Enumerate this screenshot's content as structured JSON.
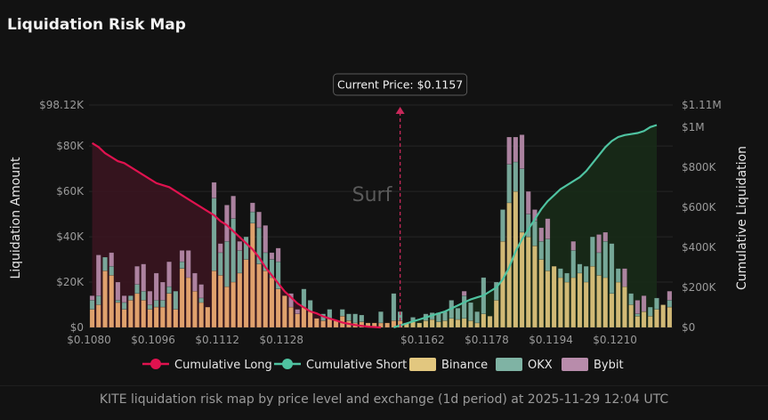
{
  "title": "Liquidation Risk Map",
  "caption": "KITE liquidation risk map by price level and exchange (1d period) at 2025-11-29 12:04 UTC",
  "watermark": "Surf",
  "colors": {
    "background": "#121212",
    "binance": "#e2c77f",
    "binance_long": "#efae74",
    "okx": "#7fb3a4",
    "bybit": "#b88cab",
    "long": "#e0124f",
    "long_fill": "#3a1520",
    "short": "#4fc3a1",
    "short_fill": "#182a18",
    "current_price": "#c8285a"
  },
  "chart_data": {
    "type": "bar",
    "stacked": true,
    "title": "Liquidation Risk Map",
    "xlabel": "",
    "ylabel": "Liquidation Amount",
    "y2label": "Cumulative Liquidation",
    "ylim": [
      0,
      98120
    ],
    "y2lim": [
      0,
      1110000
    ],
    "y_ticks": [
      "$0",
      "$20K",
      "$40K",
      "$60K",
      "$80K",
      "$98.12K"
    ],
    "y2_ticks": [
      "$0",
      "$200K",
      "$400K",
      "$600K",
      "$800K",
      "$1M",
      "$1.11M"
    ],
    "x_ticks": [
      "$0.1080",
      "$0.1096",
      "$0.1112",
      "$0.1128",
      "$0.1162",
      "$0.1178",
      "$0.1194",
      "$0.1210"
    ],
    "current_price_label": "Current Price: $0.1157",
    "current_price_index": 48.5,
    "legend": [
      "Cumulative Long",
      "Cumulative Short",
      "Binance",
      "OKX",
      "Bybit"
    ],
    "series": [
      {
        "name": "Binance",
        "values": [
          8000,
          10000,
          25000,
          23000,
          11000,
          8000,
          12000,
          15000,
          12000,
          8000,
          9000,
          9000,
          15000,
          8000,
          26000,
          22000,
          16000,
          11000,
          9000,
          25000,
          23000,
          18000,
          20000,
          24000,
          30000,
          46000,
          28000,
          25000,
          22000,
          17000,
          14000,
          9000,
          6000,
          9000,
          7000,
          4000,
          3000,
          4000,
          3000,
          5000,
          3000,
          2000,
          2500,
          2000,
          2000,
          2000,
          2000,
          3000,
          3000,
          2000,
          2500,
          2000,
          3000,
          3500,
          2500,
          3000,
          4000,
          3500,
          4000,
          3000,
          2000,
          6000,
          5000,
          12000,
          38000,
          55000,
          60000,
          42000,
          40000,
          36000,
          30000,
          25000,
          27000,
          22000,
          20000,
          22000,
          24000,
          20000,
          27000,
          23000,
          22000,
          15000,
          20000,
          18000,
          10000,
          5000,
          7000,
          5000,
          8000,
          10000,
          9000
        ]
      },
      {
        "name": "OKX",
        "values": [
          4000,
          4000,
          6000,
          4000,
          1000,
          3000,
          2000,
          4000,
          4000,
          2000,
          3000,
          3000,
          3000,
          8000,
          3000,
          0,
          0,
          2000,
          0,
          32000,
          10000,
          20000,
          28000,
          10000,
          10000,
          5000,
          16000,
          8000,
          8000,
          12000,
          0,
          0,
          0,
          8000,
          5000,
          0,
          3000,
          4000,
          0,
          3000,
          3000,
          4000,
          3000,
          0,
          0,
          5000,
          0,
          12000,
          4000,
          0,
          2000,
          0,
          3000,
          3000,
          4000,
          4000,
          8000,
          5000,
          10000,
          8000,
          5000,
          16000,
          0,
          8000,
          14000,
          17000,
          13000,
          28000,
          10000,
          11000,
          8000,
          14000,
          0,
          4000,
          4000,
          12000,
          4000,
          7000,
          13000,
          10000,
          16000,
          22000,
          6000,
          0,
          5000,
          1000,
          0,
          4000,
          5000,
          0,
          3000
        ]
      },
      {
        "name": "Bybit",
        "values": [
          2000,
          18000,
          0,
          6000,
          8000,
          3000,
          0,
          8000,
          12000,
          6000,
          12000,
          8000,
          11000,
          0,
          5000,
          12000,
          8000,
          6000,
          0,
          7000,
          4000,
          16000,
          10000,
          4000,
          0,
          4000,
          7000,
          12000,
          3000,
          6000,
          0,
          6000,
          2000,
          0,
          0,
          0,
          0,
          0,
          0,
          0,
          0,
          0,
          0,
          0,
          0,
          0,
          0,
          0,
          0,
          0,
          0,
          0,
          0,
          0,
          0,
          0,
          0,
          0,
          2000,
          0,
          0,
          0,
          0,
          0,
          0,
          12000,
          11000,
          15000,
          10000,
          5000,
          6000,
          9000,
          0,
          0,
          0,
          4000,
          0,
          0,
          0,
          8000,
          4000,
          0,
          0,
          8000,
          0,
          6000,
          7000,
          0,
          0,
          0,
          4000
        ]
      },
      {
        "name": "Cumulative Long",
        "axis": "y2",
        "values": [
          920000,
          900000,
          870000,
          850000,
          830000,
          820000,
          800000,
          780000,
          760000,
          740000,
          720000,
          710000,
          700000,
          680000,
          660000,
          640000,
          620000,
          600000,
          580000,
          560000,
          530000,
          510000,
          480000,
          450000,
          420000,
          390000,
          350000,
          300000,
          260000,
          220000,
          180000,
          150000,
          120000,
          100000,
          80000,
          70000,
          55000,
          45000,
          35000,
          25000,
          18000,
          12000,
          8000,
          4000,
          2000,
          0
        ]
      },
      {
        "name": "Cumulative Short",
        "axis": "y2",
        "values": [
          0,
          10000,
          20000,
          30000,
          40000,
          50000,
          60000,
          70000,
          80000,
          95000,
          110000,
          125000,
          140000,
          150000,
          160000,
          180000,
          200000,
          240000,
          300000,
          380000,
          440000,
          490000,
          540000,
          590000,
          630000,
          660000,
          690000,
          710000,
          730000,
          750000,
          780000,
          820000,
          860000,
          900000,
          930000,
          950000,
          960000,
          965000,
          970000,
          980000,
          1000000,
          1010000
        ]
      }
    ]
  }
}
